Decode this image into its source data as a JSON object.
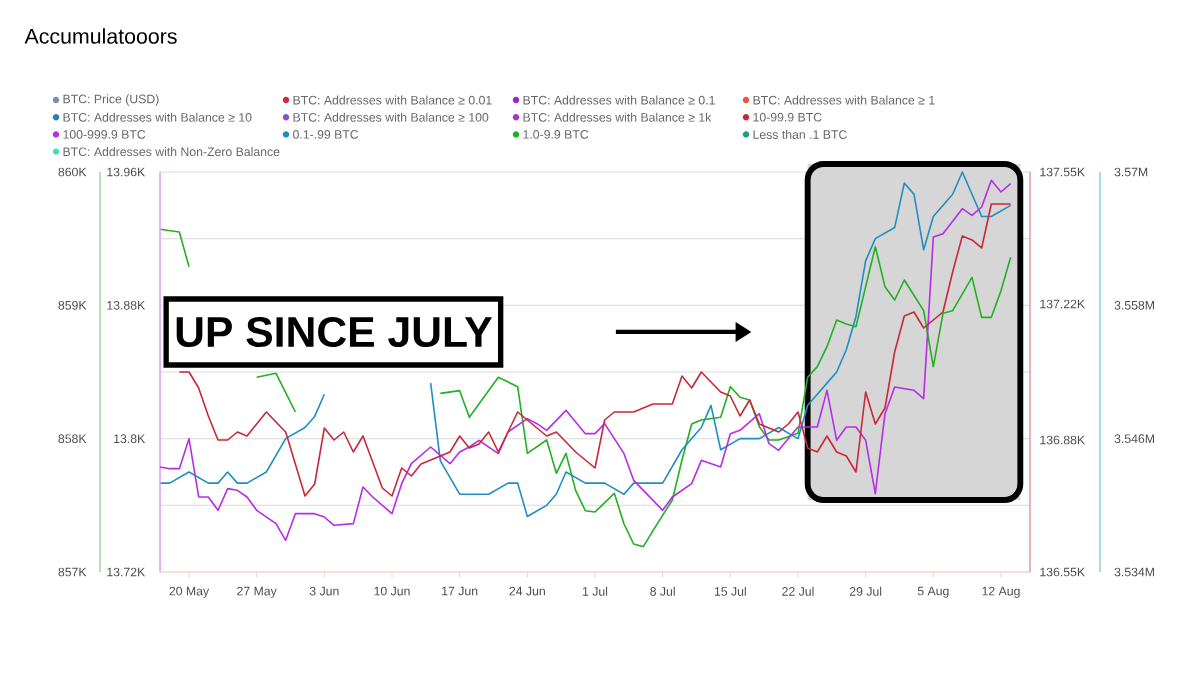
{
  "chart_data": [
    {
      "type": "line",
      "title": "Accumulatooors",
      "legend": "top",
      "marker": "none",
      "line_style": "solid",
      "xlim": [
        "--05-17",
        "--08-15"
      ],
      "xticks": [
        {
          "value": "--05-20",
          "label": "20 May"
        },
        {
          "value": "--05-27",
          "label": "27 May"
        },
        {
          "value": "--06-03",
          "label": "3 Jun"
        },
        {
          "value": "--06-10",
          "label": "10 Jun"
        },
        {
          "value": "--06-17",
          "label": "17 Jun"
        },
        {
          "value": "--06-24",
          "label": "24 Jun"
        },
        {
          "value": "--07-01",
          "label": "1 Jul"
        },
        {
          "value": "--07-08",
          "label": "8 Jul"
        },
        {
          "value": "--07-15",
          "label": "15 Jul"
        },
        {
          "value": "--07-22",
          "label": "22 Jul"
        },
        {
          "value": "--07-29",
          "label": "29 Jul"
        },
        {
          "value": "--08-05",
          "label": "5 Aug"
        },
        {
          "value": "--08-12",
          "label": "12 Aug"
        }
      ],
      "ylim": [
        13.72,
        13.96
      ],
      "yticks": [
        {
          "value": 13.72,
          "label": "13.72K"
        },
        {
          "value": 13.8,
          "label": "13.8K"
        },
        {
          "value": 13.88,
          "label": "13.88K"
        },
        {
          "value": 13.96,
          "label": "13.96K"
        }
      ],
      "y2lim": [
        136.55,
        137.55
      ],
      "y2ticks": [
        {
          "value": 136.55,
          "label": "136.55K"
        },
        {
          "value": 136.88,
          "label": "136.88K"
        },
        {
          "value": 137.22,
          "label": "137.22K"
        },
        {
          "value": 137.55,
          "label": "137.55K"
        }
      ],
      "annotations": [
        "UP SINCE JULY"
      ],
      "series": [
        {
          "name": "BTC: Price (USD)",
          "color": "#7b8fa8"
        },
        {
          "name": "BTC: Addresses with Balance ≥ 0.01",
          "color": "#d62738"
        },
        {
          "name": "BTC: Addresses with Balance ≥ 0.1",
          "color": "#a020d8"
        },
        {
          "name": "BTC: Addresses with Balance ≥ 1",
          "color": "#e8553c"
        },
        {
          "name": "BTC: Addresses with Balance ≥ 10",
          "color": "#2a7fb8"
        },
        {
          "name": "BTC: Addresses with Balance ≥ 100",
          "color": "#8a4fd0"
        },
        {
          "name": "BTC: Addresses with Balance ≥ 1k",
          "color": "#a633d6"
        },
        {
          "name": "10-99.9 BTC",
          "color": "#c8283c",
          "axis": "y2",
          "x": [
            "--05-19",
            "--05-20",
            "--05-21",
            "--05-22",
            "--05-23",
            "--05-24",
            "--05-25",
            "--05-26",
            "--05-28",
            "--05-30",
            "--06-01",
            "--06-02",
            "--06-03",
            "--06-04",
            "--06-05",
            "--06-06",
            "--06-07",
            "--06-09",
            "--06-10",
            "--06-11",
            "--06-12",
            "--06-13",
            "--06-15",
            "--06-16",
            "--06-17",
            "--06-18",
            "--06-19",
            "--06-20",
            "--06-21",
            "--06-22",
            "--06-23",
            "--06-24",
            "--06-26",
            "--06-27",
            "--06-29",
            "--06-30",
            "--07-01",
            "--07-02",
            "--07-03",
            "--07-05",
            "--07-07",
            "--07-09",
            "--07-10",
            "--07-11",
            "--07-12",
            "--07-14",
            "--07-15",
            "--07-16",
            "--07-17",
            "--07-18",
            "--07-20",
            "--07-21",
            "--07-22",
            "--07-23",
            "--07-24",
            "--07-25",
            "--07-26",
            "--07-27",
            "--07-28",
            "--07-29",
            "--07-30",
            "--07-31",
            "--08-01",
            "--08-02",
            "--08-03",
            "--08-04",
            "--08-06",
            "--08-07",
            "--08-08",
            "--08-09",
            "--08-10",
            "--08-11",
            "--08-13"
          ],
          "values": [
            137.05,
            137.05,
            137.01,
            136.94,
            136.88,
            136.88,
            136.9,
            136.89,
            136.95,
            136.9,
            136.74,
            136.77,
            136.91,
            136.88,
            136.9,
            136.85,
            136.89,
            136.76,
            136.74,
            136.81,
            136.79,
            136.82,
            136.84,
            136.85,
            136.89,
            136.86,
            136.87,
            136.9,
            136.85,
            136.9,
            136.95,
            136.93,
            136.89,
            136.9,
            136.85,
            136.83,
            136.81,
            136.93,
            136.95,
            136.95,
            136.97,
            136.97,
            137.04,
            137.01,
            137.05,
            137.0,
            136.99,
            136.94,
            136.98,
            136.92,
            136.9,
            136.92,
            136.95,
            136.86,
            136.85,
            136.89,
            136.85,
            136.84,
            136.8,
            137.0,
            136.92,
            136.96,
            137.1,
            137.19,
            137.2,
            137.16,
            137.2,
            137.3,
            137.39,
            137.38,
            137.36,
            137.47,
            137.47
          ]
        },
        {
          "name": "100-999.9 BTC",
          "color": "#b52ee6",
          "x": [
            "--05-17",
            "--05-18",
            "--05-19",
            "--05-20",
            "--05-21",
            "--05-22",
            "--05-23",
            "--05-24",
            "--05-25",
            "--05-26",
            "--05-27",
            "--05-29",
            "--05-30",
            "--05-31",
            "--06-02",
            "--06-03",
            "--06-04",
            "--06-06",
            "--06-07",
            "--06-08",
            "--06-10",
            "--06-11",
            "--06-12",
            "--06-14",
            "--06-16",
            "--06-17",
            "--06-18",
            "--06-19",
            "--06-21",
            "--06-22",
            "--06-24",
            "--06-25",
            "--06-26",
            "--06-28",
            "--06-30",
            "--07-01",
            "--07-02",
            "--07-04",
            "--07-05",
            "--07-06",
            "--07-08",
            "--07-09",
            "--07-11",
            "--07-12",
            "--07-14",
            "--07-15",
            "--07-16",
            "--07-18",
            "--07-19",
            "--07-20",
            "--07-22",
            "--07-24",
            "--07-25",
            "--07-26",
            "--07-27",
            "--07-28",
            "--07-29",
            "--07-30",
            "--07-31",
            "--08-01",
            "--08-03",
            "--08-04",
            "--08-05",
            "--08-06",
            "--08-08",
            "--08-09",
            "--08-10",
            "--08-11",
            "--08-12",
            "--08-13"
          ],
          "values": [
            13.783,
            13.782,
            13.782,
            13.8,
            13.765,
            13.765,
            13.757,
            13.77,
            13.769,
            13.765,
            13.757,
            13.749,
            13.739,
            13.755,
            13.755,
            13.753,
            13.748,
            13.749,
            13.771,
            13.765,
            13.755,
            13.773,
            13.785,
            13.795,
            13.785,
            13.792,
            13.795,
            13.799,
            13.791,
            13.804,
            13.812,
            13.809,
            13.805,
            13.817,
            13.803,
            13.803,
            13.809,
            13.791,
            13.775,
            13.769,
            13.757,
            13.765,
            13.773,
            13.787,
            13.783,
            13.803,
            13.805,
            13.815,
            13.797,
            13.793,
            13.807,
            13.807,
            13.829,
            13.799,
            13.807,
            13.807,
            13.799,
            13.767,
            13.815,
            13.831,
            13.829,
            13.824,
            13.921,
            13.923,
            13.938,
            13.934,
            13.939,
            13.955,
            13.948,
            13.953
          ]
        }
      ]
    },
    {
      "type": "line",
      "legend": "top",
      "marker": "none",
      "line_style": "solid",
      "grid": "y",
      "tick_labels": "y",
      "xlim": [
        "--05-17",
        "--08-15"
      ],
      "ylim": [
        857,
        860
      ],
      "yticks": [
        {
          "value": 857,
          "label": "857K"
        },
        {
          "value": 857.5,
          "label": null
        },
        {
          "value": 858,
          "label": "858K"
        },
        {
          "value": 858.5,
          "label": null
        },
        {
          "value": 859,
          "label": "859K"
        },
        {
          "value": 859.5,
          "label": null
        },
        {
          "value": 860,
          "label": "860K"
        }
      ],
      "y2lim": [
        3.534,
        3.57
      ],
      "y2ticks": [
        {
          "value": 3.534,
          "label": "3.534M"
        },
        {
          "value": 3.546,
          "label": "3.546M"
        },
        {
          "value": 3.558,
          "label": "3.558M"
        },
        {
          "value": 3.57,
          "label": "3.57M"
        }
      ],
      "bands": [
        {
          "axis": "x",
          "from": "--07-23",
          "to": "--08-14",
          "color": "#d6d6d6"
        }
      ],
      "series": [
        {
          "name": "0.1-.99 BTC",
          "color": "#1f8fbf",
          "axis": "y2",
          "x": [
            "--05-17",
            "--05-18",
            "--05-20",
            "--05-22",
            "--05-23",
            "--05-24",
            "--05-25",
            "--05-26",
            "--05-28",
            "--05-30",
            "--06-01",
            "--06-02",
            "--06-03",
            "--06-07",
            "--06-14",
            "--06-15",
            "--06-17",
            "--06-18",
            "--06-20",
            "--06-22",
            "--06-23",
            "--06-24",
            "--06-26",
            "--06-27",
            "--06-28",
            "--06-30",
            "--07-02",
            "--07-04",
            "--07-05",
            "--07-07",
            "--07-08",
            "--07-10",
            "--07-12",
            "--07-13",
            "--07-14",
            "--07-16",
            "--07-18",
            "--07-20",
            "--07-22",
            "--07-23",
            "--07-24",
            "--07-25",
            "--07-26",
            "--07-27",
            "--07-28",
            "--07-29",
            "--07-30",
            "--08-01",
            "--08-02",
            "--08-03",
            "--08-04",
            "--08-05",
            "--08-07",
            "--08-08",
            "--08-09",
            "--08-10",
            "--08-11",
            "--08-13"
          ],
          "values": [
            3.542,
            3.542,
            3.543,
            3.542,
            3.542,
            3.543,
            3.542,
            3.542,
            3.543,
            3.546,
            3.547,
            3.548,
            3.55,
            null,
            3.551,
            3.544,
            3.541,
            3.541,
            3.541,
            3.542,
            3.542,
            3.539,
            3.54,
            3.541,
            3.543,
            3.542,
            3.542,
            3.541,
            3.542,
            3.542,
            3.542,
            3.545,
            3.547,
            3.549,
            3.545,
            3.546,
            3.546,
            3.547,
            3.546,
            3.549,
            3.55,
            3.551,
            3.552,
            3.554,
            3.557,
            3.562,
            3.564,
            3.565,
            3.569,
            3.568,
            3.563,
            3.566,
            3.568,
            3.57,
            3.568,
            3.566,
            3.566,
            3.567
          ]
        },
        {
          "name": "1.0-9.9 BTC",
          "color": "#21b021",
          "x": [
            "--05-17",
            "--05-19",
            "--05-20",
            "--05-23",
            "--05-27",
            "--05-29",
            "--05-31",
            "--06-02",
            "--06-07",
            "--06-13",
            "--06-15",
            "--06-17",
            "--06-18",
            "--06-21",
            "--06-23",
            "--06-24",
            "--06-26",
            "--06-27",
            "--06-28",
            "--06-29",
            "--06-30",
            "--07-01",
            "--07-03",
            "--07-04",
            "--07-05",
            "--07-06",
            "--07-07",
            "--07-09",
            "--07-10",
            "--07-11",
            "--07-12",
            "--07-14",
            "--07-15",
            "--07-16",
            "--07-17",
            "--07-18",
            "--07-19",
            "--07-20",
            "--07-22",
            "--07-23",
            "--07-24",
            "--07-25",
            "--07-26",
            "--07-27",
            "--07-28",
            "--07-30",
            "--07-31",
            "--08-01",
            "--08-02",
            "--08-04",
            "--08-05",
            "--08-06",
            "--08-07",
            "--08-09",
            "--08-10",
            "--08-11",
            "--08-12",
            "--08-13"
          ],
          "values": [
            859.57,
            859.55,
            859.29,
            null,
            858.46,
            858.49,
            858.2,
            null,
            null,
            null,
            858.34,
            858.36,
            858.16,
            858.46,
            858.39,
            857.89,
            857.99,
            857.74,
            857.89,
            857.61,
            857.46,
            857.45,
            857.59,
            857.36,
            857.21,
            857.19,
            857.31,
            857.54,
            857.84,
            858.11,
            858.14,
            858.16,
            858.39,
            858.31,
            858.29,
            858.09,
            857.99,
            857.99,
            858.04,
            858.46,
            858.54,
            858.69,
            858.89,
            858.86,
            858.84,
            859.44,
            859.14,
            859.04,
            859.19,
            858.96,
            858.54,
            858.94,
            858.96,
            859.21,
            858.91,
            858.91,
            859.11,
            859.36
          ]
        },
        {
          "name": "Less than .1 BTC",
          "color": "#1a9e8a"
        },
        {
          "name": "BTC: Addresses with Non-Zero Balance",
          "color": "#40e0c0"
        }
      ]
    }
  ]
}
